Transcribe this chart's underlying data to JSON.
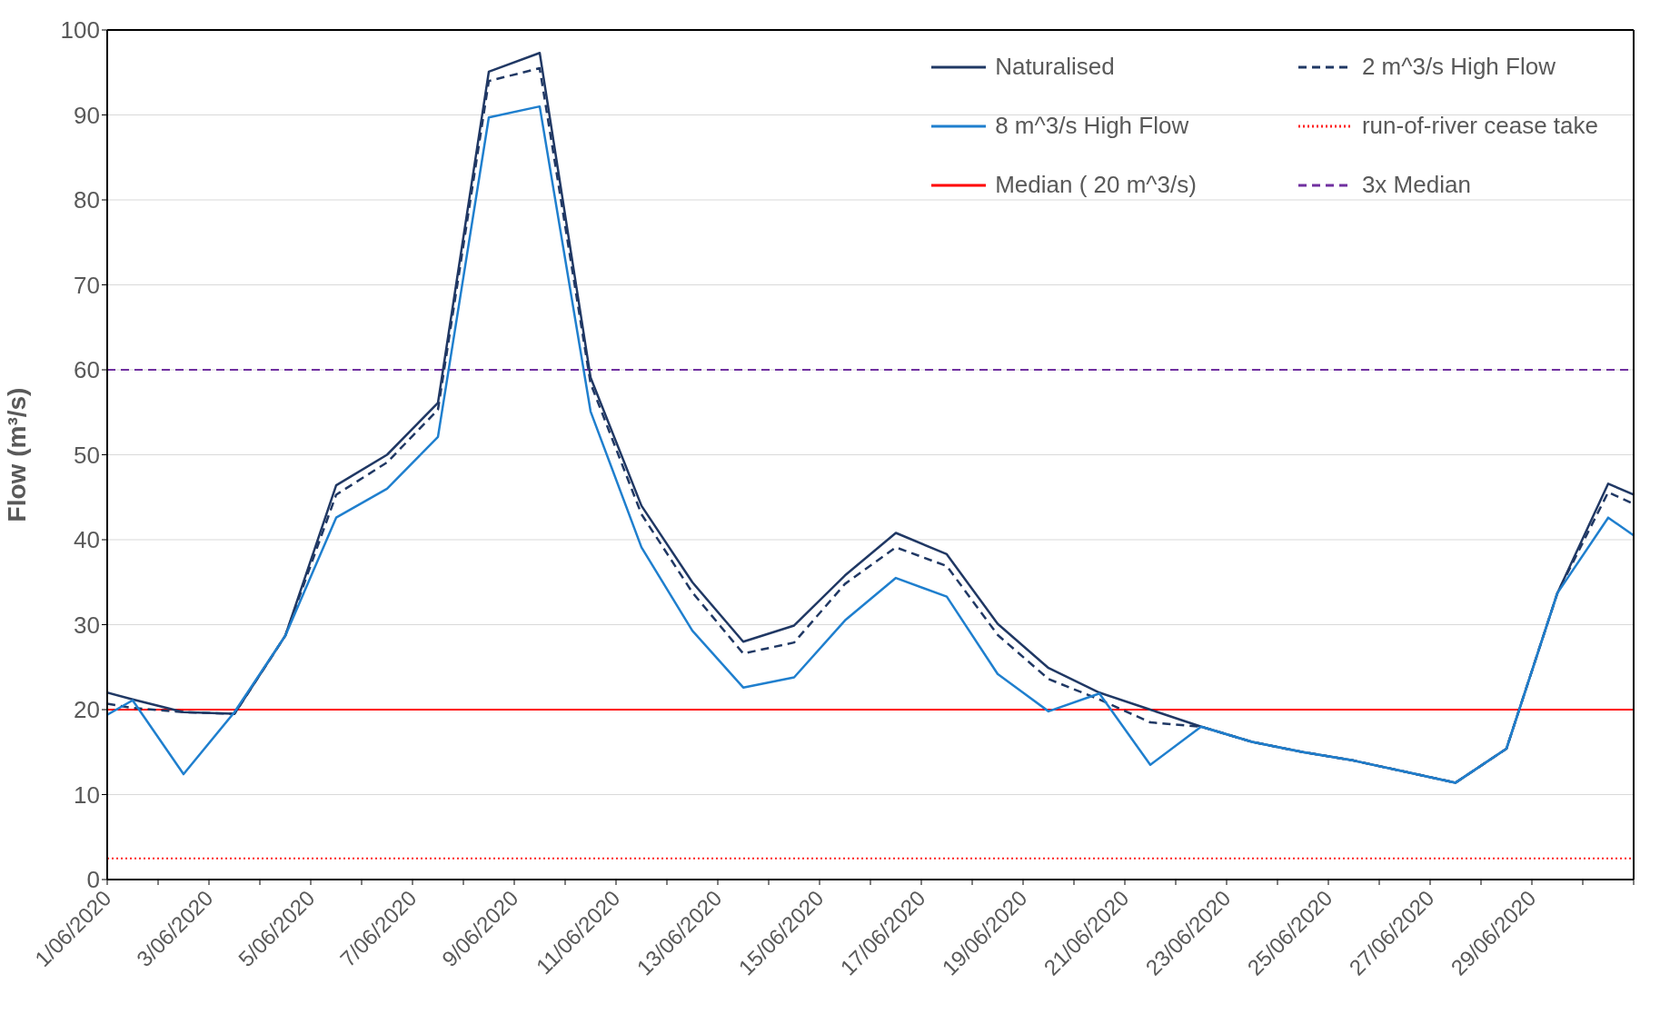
{
  "chart_data": {
    "type": "line",
    "ylabel": "Flow (m³/s)",
    "x": [
      "2020-06-01T00:00",
      "2020-06-01T12:00",
      "2020-06-02T12:00",
      "2020-06-03T12:00",
      "2020-06-04T12:00",
      "2020-06-05T12:00",
      "2020-06-06T12:00",
      "2020-06-07T12:00",
      "2020-06-08T12:00",
      "2020-06-09T12:00",
      "2020-06-10T12:00",
      "2020-06-11T12:00",
      "2020-06-12T12:00",
      "2020-06-13T12:00",
      "2020-06-14T12:00",
      "2020-06-15T12:00",
      "2020-06-16T12:00",
      "2020-06-17T12:00",
      "2020-06-18T12:00",
      "2020-06-19T12:00",
      "2020-06-20T12:00",
      "2020-06-21T12:00",
      "2020-06-22T12:00",
      "2020-06-23T12:00",
      "2020-06-24T12:00",
      "2020-06-25T12:00",
      "2020-06-26T12:00",
      "2020-06-27T12:00",
      "2020-06-28T12:00",
      "2020-06-29T12:00",
      "2020-06-30T12:00",
      "2020-07-01T00:00"
    ],
    "series": [
      {
        "name": "Naturalised",
        "color": "#203864",
        "line_style": "solid",
        "values": [
          22.0,
          21.2,
          19.7,
          19.5,
          28.7,
          46.4,
          50.0,
          56.1,
          95.1,
          97.3,
          59.1,
          44.0,
          35.0,
          28.0,
          29.9,
          35.8,
          40.8,
          38.3,
          30.1,
          24.9,
          22.0,
          20.0,
          18.0,
          16.2,
          15.0,
          14.0,
          12.7,
          11.4,
          15.4,
          33.7,
          46.6,
          45.3
        ]
      },
      {
        "name": "2 m^3/s High Flow",
        "color": "#203864",
        "line_style": "dashed",
        "values": [
          20.7,
          20.2,
          19.7,
          19.5,
          28.7,
          45.3,
          49.1,
          55.3,
          94.0,
          95.5,
          58.4,
          43.0,
          33.8,
          26.6,
          27.9,
          34.8,
          39.1,
          36.9,
          28.8,
          23.6,
          21.2,
          18.5,
          18.0,
          16.2,
          15.0,
          14.0,
          12.7,
          11.4,
          15.4,
          33.7,
          45.6,
          44.2
        ]
      },
      {
        "name": "8 m^3/s High Flow",
        "color": "#1f7fce",
        "line_style": "solid",
        "values": [
          19.4,
          21.1,
          12.4,
          19.7,
          28.7,
          42.6,
          46.0,
          52.1,
          89.7,
          91.0,
          55.1,
          39.1,
          29.3,
          22.6,
          23.8,
          30.5,
          35.5,
          33.3,
          24.2,
          19.8,
          21.9,
          13.5,
          18.0,
          16.2,
          15.0,
          14.0,
          12.7,
          11.4,
          15.4,
          33.7,
          42.6,
          40.5
        ]
      }
    ],
    "ref_lines": [
      {
        "axis": "y",
        "value": 2.5,
        "label": "run-of-river cease take",
        "color": "#ff2020",
        "line_style": "dotted"
      },
      {
        "axis": "y",
        "value": 20,
        "label": "Median ( 20 m^3/s)",
        "color": "#ff0000",
        "line_style": "solid"
      },
      {
        "axis": "y",
        "value": 60,
        "label": "3x Median",
        "color": "#7030a0",
        "line_style": "dashed"
      }
    ],
    "xlim": [
      "2020-06-01",
      "2020-07-01"
    ],
    "xticks": [
      {
        "value": "2020-06-01",
        "label": "1/06/2020"
      },
      {
        "value": "2020-06-02",
        "label": null
      },
      {
        "value": "2020-06-03",
        "label": "3/06/2020"
      },
      {
        "value": "2020-06-04",
        "label": null
      },
      {
        "value": "2020-06-05",
        "label": "5/06/2020"
      },
      {
        "value": "2020-06-06",
        "label": null
      },
      {
        "value": "2020-06-07",
        "label": "7/06/2020"
      },
      {
        "value": "2020-06-08",
        "label": null
      },
      {
        "value": "2020-06-09",
        "label": "9/06/2020"
      },
      {
        "value": "2020-06-10",
        "label": null
      },
      {
        "value": "2020-06-11",
        "label": "11/06/2020"
      },
      {
        "value": "2020-06-12",
        "label": null
      },
      {
        "value": "2020-06-13",
        "label": "13/06/2020"
      },
      {
        "value": "2020-06-14",
        "label": null
      },
      {
        "value": "2020-06-15",
        "label": "15/06/2020"
      },
      {
        "value": "2020-06-16",
        "label": null
      },
      {
        "value": "2020-06-17",
        "label": "17/06/2020"
      },
      {
        "value": "2020-06-18",
        "label": null
      },
      {
        "value": "2020-06-19",
        "label": "19/06/2020"
      },
      {
        "value": "2020-06-20",
        "label": null
      },
      {
        "value": "2020-06-21",
        "label": "21/06/2020"
      },
      {
        "value": "2020-06-22",
        "label": null
      },
      {
        "value": "2020-06-23",
        "label": "23/06/2020"
      },
      {
        "value": "2020-06-24",
        "label": null
      },
      {
        "value": "2020-06-25",
        "label": "25/06/2020"
      },
      {
        "value": "2020-06-26",
        "label": null
      },
      {
        "value": "2020-06-27",
        "label": "27/06/2020"
      },
      {
        "value": "2020-06-28",
        "label": null
      },
      {
        "value": "2020-06-29",
        "label": "29/06/2020"
      },
      {
        "value": "2020-06-30",
        "label": null
      },
      {
        "value": "2020-07-01",
        "label": null
      }
    ],
    "ylim": [
      0,
      100
    ],
    "yticks": [
      0,
      10,
      20,
      30,
      40,
      50,
      60,
      70,
      80,
      90,
      100
    ],
    "grid": "y",
    "legend": "top right",
    "marker": "none"
  }
}
